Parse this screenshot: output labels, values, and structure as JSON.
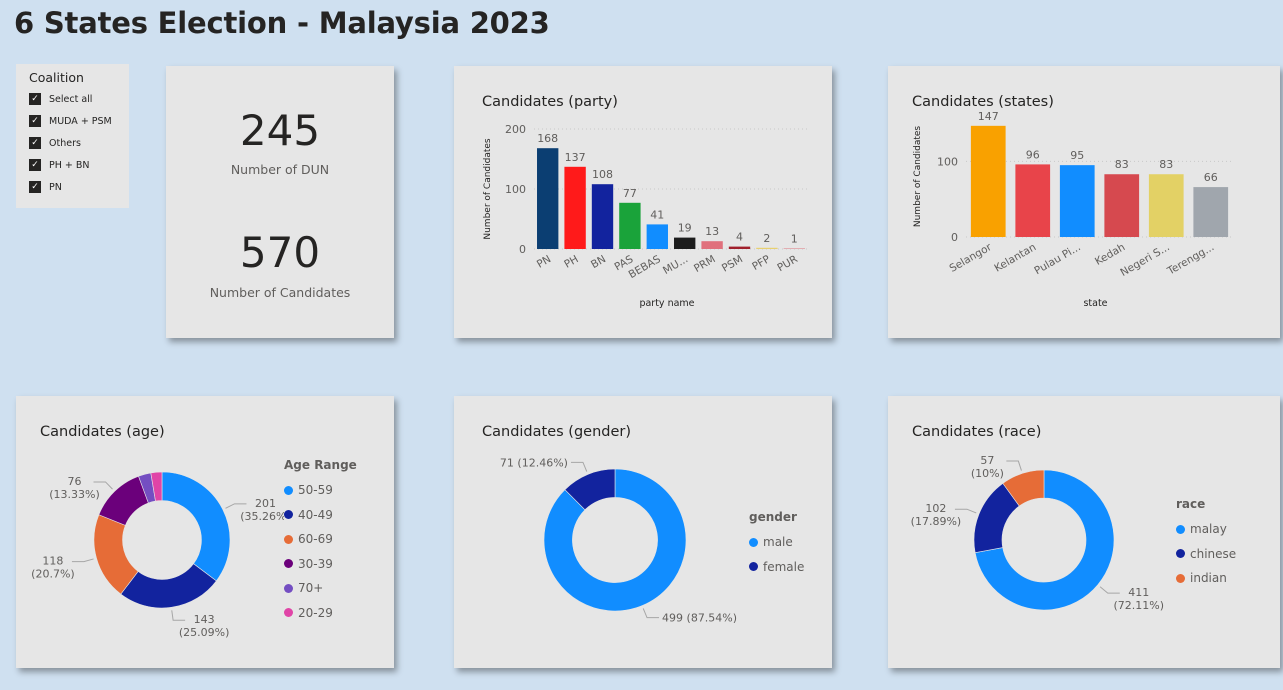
{
  "page": {
    "title": "6 States Election - Malaysia 2023"
  },
  "slicer": {
    "title": "Coalition",
    "items": [
      {
        "label": "Select all"
      },
      {
        "label": "MUDA + PSM"
      },
      {
        "label": "Others"
      },
      {
        "label": "PH + BN"
      },
      {
        "label": "PN"
      }
    ]
  },
  "kpi": {
    "dun_value": "245",
    "dun_label": "Number of DUN",
    "cand_value": "570",
    "cand_label": "Number of Candidates"
  },
  "chart_data": [
    {
      "id": "party",
      "type": "bar",
      "title": "Candidates (party)",
      "xlabel": "party name",
      "ylabel": "Number of Candidates",
      "ylim": [
        0,
        200
      ],
      "yticks": [
        0,
        100,
        200
      ],
      "categories": [
        "PN",
        "PH",
        "BN",
        "PAS",
        "BEBAS",
        "MU...",
        "PRM",
        "PSM",
        "PFP",
        "PUR"
      ],
      "values": [
        168,
        137,
        108,
        77,
        41,
        19,
        13,
        4,
        2,
        1
      ],
      "colors": [
        "#0b3e72",
        "#ff1a1a",
        "#12239e",
        "#1aa33a",
        "#118dff",
        "#1c1c1c",
        "#e0707c",
        "#a0202c",
        "#e8d070",
        "#e08890"
      ],
      "grid": true
    },
    {
      "id": "states",
      "type": "bar",
      "title": "Candidates (states)",
      "xlabel": "state",
      "ylabel": "Number of Candidates",
      "ylim": [
        0,
        160
      ],
      "yticks": [
        0,
        100
      ],
      "categories": [
        "Selangor",
        "Kelantan",
        "Pulau Pi...",
        "Kedah",
        "Negeri S...",
        "Terengg..."
      ],
      "values": [
        147,
        96,
        95,
        83,
        83,
        66
      ],
      "colors": [
        "#f9a100",
        "#e8444a",
        "#118dff",
        "#d6494f",
        "#e3d165",
        "#a0a6ad"
      ],
      "grid": true
    },
    {
      "id": "age",
      "type": "pie",
      "title": "Candidates (age)",
      "legend_title": "Age Range",
      "legend_position": "right",
      "slices": [
        {
          "label": "50-59",
          "value": 201,
          "pct": "(35.26%)",
          "color": "#118dff"
        },
        {
          "label": "40-49",
          "value": 143,
          "pct": "(25.09%)",
          "color": "#12239e"
        },
        {
          "label": "60-69",
          "value": 118,
          "pct": "(20.7%)",
          "color": "#e66c37"
        },
        {
          "label": "30-39",
          "value": 76,
          "pct": "(13.33%)",
          "color": "#6b007b"
        },
        {
          "label": "70+",
          "value": 17,
          "pct": "",
          "color": "#744ec2"
        },
        {
          "label": "20-29",
          "value": 15,
          "pct": "",
          "color": "#e044a7"
        }
      ]
    },
    {
      "id": "gender",
      "type": "pie",
      "title": "Candidates (gender)",
      "legend_title": "gender",
      "legend_position": "right",
      "slices": [
        {
          "label": "male",
          "value": 499,
          "pct": "(87.54%)",
          "color": "#118dff"
        },
        {
          "label": "female",
          "value": 71,
          "pct": "(12.46%)",
          "color": "#12239e"
        }
      ]
    },
    {
      "id": "race",
      "type": "pie",
      "title": "Candidates (race)",
      "legend_title": "race",
      "legend_position": "right",
      "slices": [
        {
          "label": "malay",
          "value": 411,
          "pct": "(72.11%)",
          "color": "#118dff"
        },
        {
          "label": "chinese",
          "value": 102,
          "pct": "(17.89%)",
          "color": "#12239e"
        },
        {
          "label": "indian",
          "value": 57,
          "pct": "(10%)",
          "color": "#e66c37"
        }
      ]
    }
  ]
}
